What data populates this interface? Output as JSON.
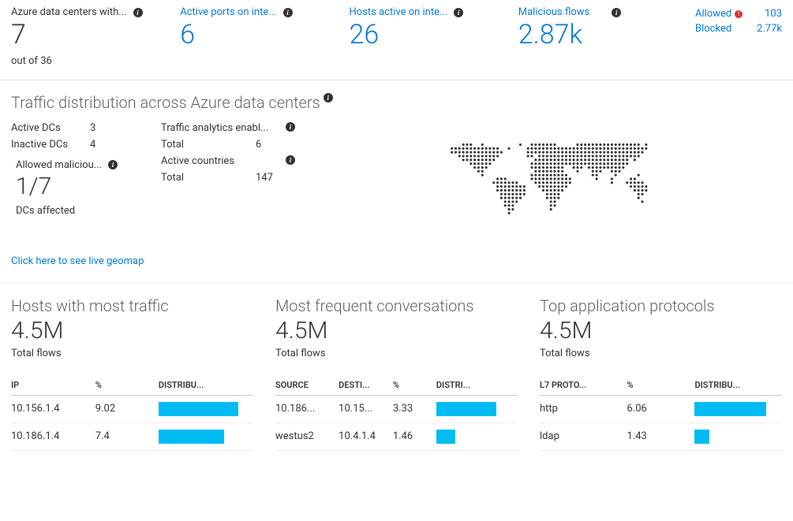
{
  "colors": {
    "link": "#0078d4",
    "text": "#323130",
    "muted": "#605e5c",
    "bar": "#00bcf2",
    "alert": "#d13438",
    "border": "#edebe9",
    "tableHeaderBorder": "#c8c6c4",
    "mapDot": "#2b2b2b"
  },
  "metrics": [
    {
      "title": "Azure data centers with...",
      "value": "7",
      "link": false,
      "sub": "out of 36"
    },
    {
      "title": "Active ports on inte...",
      "value": "6",
      "link": true
    },
    {
      "title": "Hosts active on inte...",
      "value": "26",
      "link": true
    },
    {
      "title": "Malicious flows",
      "value": "2.87k",
      "link": true
    }
  ],
  "flowsSummary": {
    "allowed": {
      "label": "Allowed",
      "count": "103",
      "alert": true
    },
    "blocked": {
      "label": "Blocked",
      "count": "2.77k",
      "alert": false
    }
  },
  "distribution": {
    "title": "Traffic distribution across Azure data centers",
    "kv1": [
      {
        "k": "Active DCs",
        "v": "3"
      },
      {
        "k": "Inactive DCs",
        "v": "4"
      }
    ],
    "allowedMalicious": {
      "label": "Allowed maliciou...",
      "value": "1/7",
      "sub": "DCs affected"
    },
    "kv2": [
      {
        "k": "Traffic analytics enabl...",
        "v": "",
        "info": true
      },
      {
        "k": "Total",
        "v": "6"
      },
      {
        "k": "Active countries",
        "v": "",
        "info": true
      },
      {
        "k": "Total",
        "v": "147"
      }
    ],
    "geomapLink": "Click here to see live geomap"
  },
  "panes": {
    "hosts": {
      "title": "Hosts with most traffic",
      "big": "4.5M",
      "sub": "Total flows",
      "columns": [
        "IP",
        "%",
        "DISTRIBU..."
      ],
      "colWidths": [
        "80px",
        "60px",
        "90px"
      ],
      "rows": [
        {
          "cells": [
            "10.156.1.4",
            "9.02"
          ],
          "barPct": 90
        },
        {
          "cells": [
            "10.186.1.4",
            "7.4"
          ],
          "barPct": 74
        }
      ]
    },
    "convos": {
      "title": "Most frequent conversations",
      "big": "4.5M",
      "sub": "Total flows",
      "columns": [
        "SOURCE",
        "DESTI...",
        "%",
        "DISTRI..."
      ],
      "colWidths": [
        "70px",
        "60px",
        "48px",
        "80px"
      ],
      "rows": [
        {
          "cells": [
            "10.186...",
            "10.15...",
            "3.33"
          ],
          "barPct": 80
        },
        {
          "cells": [
            "westus2",
            "10.4.1.4",
            "1.46"
          ],
          "barPct": 25
        }
      ]
    },
    "protocols": {
      "title": "Top application protocols",
      "big": "4.5M",
      "sub": "Total flows",
      "columns": [
        "L7 PROTO...",
        "%",
        "DISTRIBU..."
      ],
      "colWidths": [
        "90px",
        "70px",
        "90px"
      ],
      "rows": [
        {
          "cells": [
            "http",
            "6.06"
          ],
          "barPct": 88
        },
        {
          "cells": [
            "ldap",
            "1.43"
          ],
          "barPct": 18
        }
      ]
    }
  }
}
